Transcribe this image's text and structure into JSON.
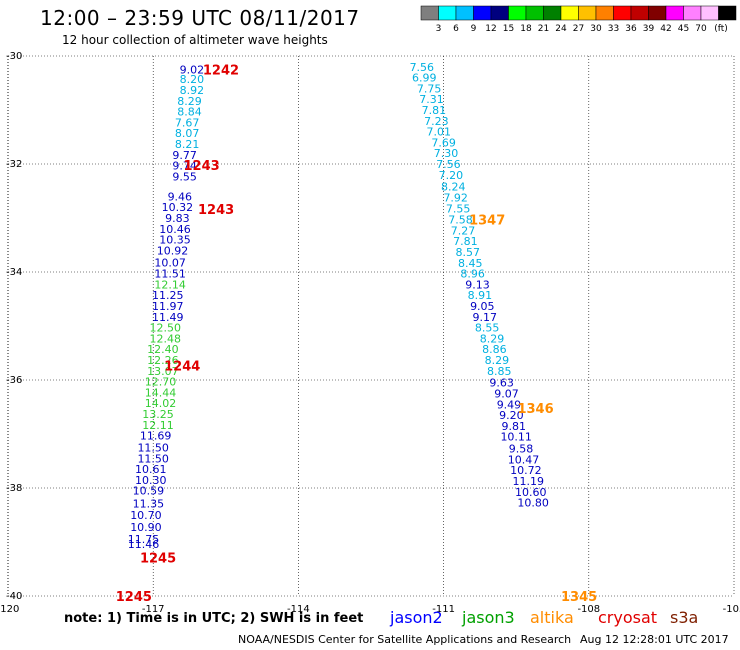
{
  "header": {
    "title": "12:00 – 23:59 UTC 08/11/2017",
    "subtitle": "12 hour collection of altimeter wave heights"
  },
  "colorbar": {
    "colors": [
      "#7f7f7f",
      "#00ffff",
      "#00c0ff",
      "#0000ff",
      "#00007f",
      "#00ff00",
      "#00c000",
      "#008000",
      "#ffff00",
      "#ffc000",
      "#ff8000",
      "#ff0000",
      "#c00000",
      "#800000",
      "#ff00ff",
      "#ff80ff",
      "#ffc0ff",
      "#000000"
    ],
    "labels": [
      "3",
      "6",
      "9",
      "12",
      "15",
      "18",
      "21",
      "24",
      "27",
      "30",
      "33",
      "36",
      "39",
      "42",
      "45",
      "70"
    ],
    "unit": "(ft)"
  },
  "legend": {
    "note": "note: 1) Time is in UTC; 2) SWH is in feet",
    "satellites": [
      {
        "name": "jason2",
        "color": "#0000ff"
      },
      {
        "name": "jason3",
        "color": "#00a000"
      },
      {
        "name": "altika",
        "color": "#ff8c00"
      },
      {
        "name": "cryosat",
        "color": "#e00000"
      },
      {
        "name": "s3a",
        "color": "#7f1f00"
      }
    ]
  },
  "footer": {
    "credit": "NOAA/NESDIS Center for Satellite Applications and Research",
    "timestamp": "Aug 12 12:28:01 UTC 2017"
  },
  "chart_data": {
    "type": "scatter",
    "xlim": [
      -120,
      -105
    ],
    "ylim": [
      -40,
      -30
    ],
    "x_ticks": [
      "-120",
      "-117",
      "-114",
      "-111",
      "-108",
      "-105"
    ],
    "y_ticks": [
      "-30",
      "-32",
      "-34",
      "-36",
      "-38",
      "-40"
    ],
    "grid": true,
    "time_labels": [
      {
        "text": "1242",
        "x": -115.6,
        "y": -30.25,
        "color": "#e00000"
      },
      {
        "text": "1243",
        "x": -116.0,
        "y": -32.02,
        "color": "#e00000"
      },
      {
        "text": "1243",
        "x": -115.7,
        "y": -32.83,
        "color": "#e00000"
      },
      {
        "text": "1244",
        "x": -116.4,
        "y": -35.73,
        "color": "#e00000"
      },
      {
        "text": "1245",
        "x": -116.9,
        "y": -39.29,
        "color": "#e00000"
      },
      {
        "text": "1245",
        "x": -117.4,
        "y": -40.0,
        "color": "#e00000"
      },
      {
        "text": "1347",
        "x": -110.1,
        "y": -33.03,
        "color": "#ff8c00"
      },
      {
        "text": "1346",
        "x": -109.1,
        "y": -36.52,
        "color": "#ff8c00"
      },
      {
        "text": "1345",
        "x": -108.2,
        "y": -40.0,
        "color": "#ff8c00"
      }
    ],
    "series": [
      {
        "name": "track-west",
        "points": [
          {
            "label": "9.02",
            "x": -116.2,
            "y": -30.25,
            "color": "#0000c0"
          },
          {
            "label": "8.20",
            "x": -116.2,
            "y": -30.43,
            "color": "#00b0e0"
          },
          {
            "label": "8.92",
            "x": -116.2,
            "y": -30.63,
            "color": "#00b0e0"
          },
          {
            "label": "8.29",
            "x": -116.25,
            "y": -30.83,
            "color": "#00b0e0"
          },
          {
            "label": "8.84",
            "x": -116.25,
            "y": -31.03,
            "color": "#00b0e0"
          },
          {
            "label": "7.67",
            "x": -116.3,
            "y": -31.23,
            "color": "#00b0e0"
          },
          {
            "label": "8.07",
            "x": -116.3,
            "y": -31.43,
            "color": "#00b0e0"
          },
          {
            "label": "8.21",
            "x": -116.3,
            "y": -31.63,
            "color": "#00b0e0"
          },
          {
            "label": "9.77",
            "x": -116.35,
            "y": -31.83,
            "color": "#0000c0"
          },
          {
            "label": "9.74",
            "x": -116.35,
            "y": -32.03,
            "color": "#0000c0"
          },
          {
            "label": "9.55",
            "x": -116.35,
            "y": -32.23,
            "color": "#0000c0"
          },
          {
            "label": "9.46",
            "x": -116.45,
            "y": -32.6,
            "color": "#0000c0"
          },
          {
            "label": "10.32",
            "x": -116.5,
            "y": -32.8,
            "color": "#0000c0"
          },
          {
            "label": "9.83",
            "x": -116.5,
            "y": -33.0,
            "color": "#0000c0"
          },
          {
            "label": "10.46",
            "x": -116.55,
            "y": -33.2,
            "color": "#0000c0"
          },
          {
            "label": "10.35",
            "x": -116.55,
            "y": -33.4,
            "color": "#0000c0"
          },
          {
            "label": "10.92",
            "x": -116.6,
            "y": -33.6,
            "color": "#0000c0"
          },
          {
            "label": "10.07",
            "x": -116.65,
            "y": -33.82,
            "color": "#0000c0"
          },
          {
            "label": "11.51",
            "x": -116.65,
            "y": -34.03,
            "color": "#0000c0"
          },
          {
            "label": "12.14",
            "x": -116.65,
            "y": -34.23,
            "color": "#33cc33"
          },
          {
            "label": "11.25",
            "x": -116.7,
            "y": -34.43,
            "color": "#0000c0"
          },
          {
            "label": "11.97",
            "x": -116.7,
            "y": -34.63,
            "color": "#0000c0"
          },
          {
            "label": "11.49",
            "x": -116.7,
            "y": -34.83,
            "color": "#0000c0"
          },
          {
            "label": "12.50",
            "x": -116.75,
            "y": -35.03,
            "color": "#33cc33"
          },
          {
            "label": "12.48",
            "x": -116.75,
            "y": -35.23,
            "color": "#33cc33"
          },
          {
            "label": "12.40",
            "x": -116.8,
            "y": -35.43,
            "color": "#33cc33"
          },
          {
            "label": "12.26",
            "x": -116.8,
            "y": -35.63,
            "color": "#33cc33"
          },
          {
            "label": "13.07",
            "x": -116.8,
            "y": -35.83,
            "color": "#33cc33"
          },
          {
            "label": "12.70",
            "x": -116.85,
            "y": -36.03,
            "color": "#33cc33"
          },
          {
            "label": "14.44",
            "x": -116.85,
            "y": -36.23,
            "color": "#33cc33"
          },
          {
            "label": "14.02",
            "x": -116.85,
            "y": -36.43,
            "color": "#33cc33"
          },
          {
            "label": "13.25",
            "x": -116.9,
            "y": -36.63,
            "color": "#33cc33"
          },
          {
            "label": "12.11",
            "x": -116.9,
            "y": -36.83,
            "color": "#33cc33"
          },
          {
            "label": "11.69",
            "x": -116.95,
            "y": -37.03,
            "color": "#0000c0"
          },
          {
            "label": "11.50",
            "x": -117.0,
            "y": -37.25,
            "color": "#0000c0"
          },
          {
            "label": "11.50",
            "x": -117.0,
            "y": -37.45,
            "color": "#0000c0"
          },
          {
            "label": "10.61",
            "x": -117.05,
            "y": -37.65,
            "color": "#0000c0"
          },
          {
            "label": "10.30",
            "x": -117.05,
            "y": -37.85,
            "color": "#0000c0"
          },
          {
            "label": "10.59",
            "x": -117.1,
            "y": -38.05,
            "color": "#0000c0"
          },
          {
            "label": "11.35",
            "x": -117.1,
            "y": -38.29,
            "color": "#0000c0"
          },
          {
            "label": "10.70",
            "x": -117.15,
            "y": -38.5,
            "color": "#0000c0"
          },
          {
            "label": "10.90",
            "x": -117.15,
            "y": -38.72,
            "color": "#0000c0"
          },
          {
            "label": "11.75",
            "x": -117.2,
            "y": -38.94,
            "color": "#0000c0"
          },
          {
            "label": "11.46",
            "x": -117.2,
            "y": -39.04,
            "color": "#0000c0"
          }
        ]
      },
      {
        "name": "track-east",
        "points": [
          {
            "label": "7.56",
            "x": -111.45,
            "y": -30.2,
            "color": "#00b0e0"
          },
          {
            "label": "6.99",
            "x": -111.4,
            "y": -30.4,
            "color": "#00b0e0"
          },
          {
            "label": "7.75",
            "x": -111.3,
            "y": -30.6,
            "color": "#00b0e0"
          },
          {
            "label": "7.31",
            "x": -111.25,
            "y": -30.8,
            "color": "#00b0e0"
          },
          {
            "label": "7.81",
            "x": -111.2,
            "y": -31.0,
            "color": "#00b0e0"
          },
          {
            "label": "7.23",
            "x": -111.15,
            "y": -31.2,
            "color": "#00b0e0"
          },
          {
            "label": "7.01",
            "x": -111.1,
            "y": -31.4,
            "color": "#00b0e0"
          },
          {
            "label": "7.69",
            "x": -111.0,
            "y": -31.6,
            "color": "#00b0e0"
          },
          {
            "label": "7.30",
            "x": -110.95,
            "y": -31.8,
            "color": "#00b0e0"
          },
          {
            "label": "7.56",
            "x": -110.9,
            "y": -32.0,
            "color": "#00b0e0"
          },
          {
            "label": "7.20",
            "x": -110.85,
            "y": -32.2,
            "color": "#00b0e0"
          },
          {
            "label": "8.24",
            "x": -110.8,
            "y": -32.42,
            "color": "#00b0e0"
          },
          {
            "label": "7.92",
            "x": -110.75,
            "y": -32.62,
            "color": "#00b0e0"
          },
          {
            "label": "7.55",
            "x": -110.7,
            "y": -32.82,
            "color": "#00b0e0"
          },
          {
            "label": "7.58",
            "x": -110.65,
            "y": -33.03,
            "color": "#00b0e0"
          },
          {
            "label": "7.27",
            "x": -110.6,
            "y": -33.23,
            "color": "#00b0e0"
          },
          {
            "label": "7.81",
            "x": -110.55,
            "y": -33.43,
            "color": "#00b0e0"
          },
          {
            "label": "8.57",
            "x": -110.5,
            "y": -33.63,
            "color": "#00b0e0"
          },
          {
            "label": "8.45",
            "x": -110.45,
            "y": -33.83,
            "color": "#00b0e0"
          },
          {
            "label": "8.96",
            "x": -110.4,
            "y": -34.03,
            "color": "#00b0e0"
          },
          {
            "label": "9.13",
            "x": -110.3,
            "y": -34.23,
            "color": "#0000c0"
          },
          {
            "label": "8.91",
            "x": -110.25,
            "y": -34.43,
            "color": "#00b0e0"
          },
          {
            "label": "9.05",
            "x": -110.2,
            "y": -34.63,
            "color": "#0000c0"
          },
          {
            "label": "9.17",
            "x": -110.15,
            "y": -34.83,
            "color": "#0000c0"
          },
          {
            "label": "8.55",
            "x": -110.1,
            "y": -35.03,
            "color": "#00b0e0"
          },
          {
            "label": "8.29",
            "x": -110.0,
            "y": -35.23,
            "color": "#00b0e0"
          },
          {
            "label": "8.86",
            "x": -109.95,
            "y": -35.43,
            "color": "#00b0e0"
          },
          {
            "label": "8.29",
            "x": -109.9,
            "y": -35.63,
            "color": "#00b0e0"
          },
          {
            "label": "8.85",
            "x": -109.85,
            "y": -35.83,
            "color": "#00b0e0"
          },
          {
            "label": "9.63",
            "x": -109.8,
            "y": -36.05,
            "color": "#0000c0"
          },
          {
            "label": "9.07",
            "x": -109.7,
            "y": -36.25,
            "color": "#0000c0"
          },
          {
            "label": "9.49",
            "x": -109.65,
            "y": -36.45,
            "color": "#0000c0"
          },
          {
            "label": "9.20",
            "x": -109.6,
            "y": -36.65,
            "color": "#0000c0"
          },
          {
            "label": "9.81",
            "x": -109.55,
            "y": -36.85,
            "color": "#0000c0"
          },
          {
            "label": "10.11",
            "x": -109.5,
            "y": -37.05,
            "color": "#0000c0"
          },
          {
            "label": "9.58",
            "x": -109.4,
            "y": -37.27,
            "color": "#0000c0"
          },
          {
            "label": "10.47",
            "x": -109.35,
            "y": -37.47,
            "color": "#0000c0"
          },
          {
            "label": "10.72",
            "x": -109.3,
            "y": -37.67,
            "color": "#0000c0"
          },
          {
            "label": "11.19",
            "x": -109.25,
            "y": -37.87,
            "color": "#0000c0"
          },
          {
            "label": "10.60",
            "x": -109.2,
            "y": -38.07,
            "color": "#0000c0"
          },
          {
            "label": "10.80",
            "x": -109.15,
            "y": -38.27,
            "color": "#0000c0"
          }
        ]
      }
    ]
  }
}
